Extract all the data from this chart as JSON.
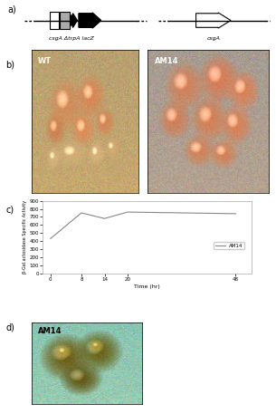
{
  "panel_a_label": "a)",
  "panel_b_label": "b)",
  "panel_c_label": "c)",
  "panel_d_label": "d)",
  "gene_label1": "csgA ΔtrpA lacZ",
  "gene_label2": "csgA",
  "wt_label": "WT",
  "am14_label_b": "AM14",
  "am14_label_d": "AM14",
  "legend_label": "AM14",
  "xlabel": "Time (hr)",
  "ylabel": "β-Gal.actosidase Specific Activity",
  "time_points": [
    0,
    8,
    14,
    20,
    48
  ],
  "activity_values": [
    430,
    750,
    680,
    760,
    740
  ],
  "yticks": [
    0,
    100,
    200,
    300,
    400,
    500,
    600,
    700,
    800,
    900
  ],
  "xticks": [
    0,
    8,
    14,
    20,
    48
  ],
  "ylim": [
    0,
    900
  ],
  "xlim": [
    -2,
    52
  ],
  "line_color": "#888888",
  "bg_color": "#ffffff",
  "wt_bg": "#b8a070",
  "am14b_bg": "#a09888",
  "am14d_bg": "#88c4b0",
  "fruit_orange": "#cc8855",
  "fruit_orange2": "#dd9966",
  "fruit_green": "#806820",
  "fruit_green2": "#607020"
}
